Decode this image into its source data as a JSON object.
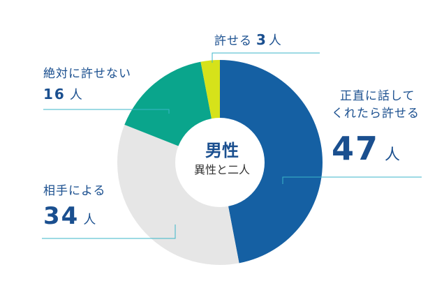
{
  "chart_data": {
    "type": "pie",
    "title": "男性",
    "subtitle": "異性と二人",
    "unit": "人",
    "slices": [
      {
        "label_lines": [
          "正直に話して",
          "くれたら許せる"
        ],
        "value": 47,
        "color": "#1560a3"
      },
      {
        "label_lines": [
          "相手による"
        ],
        "value": 34,
        "color": "#e6e6e6"
      },
      {
        "label_lines": [
          "絶対に許せない"
        ],
        "value": 16,
        "color": "#0aa58c"
      },
      {
        "label_lines": [
          "許せる"
        ],
        "value": 3,
        "color": "#d6e21a"
      }
    ],
    "leader_color": "#3bb6c8"
  }
}
